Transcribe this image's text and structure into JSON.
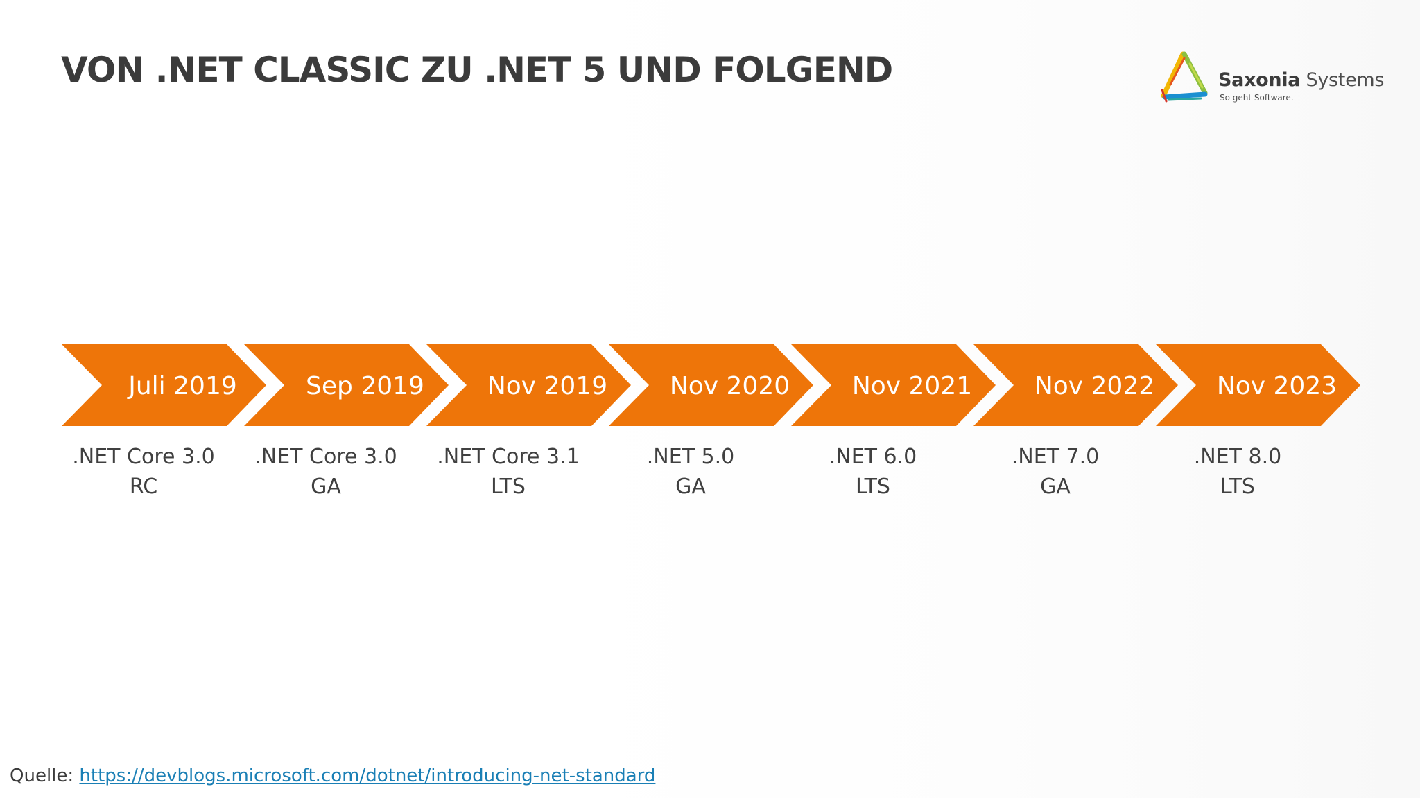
{
  "title": "VON .NET CLASSIC ZU .NET 5 UND FOLGEND",
  "logo": {
    "name_bold": "Saxonia",
    "name_rest": " Systems",
    "tagline": "So geht Software."
  },
  "timeline": [
    {
      "date": "Juli 2019",
      "product": ".NET Core 3.0",
      "status": "RC"
    },
    {
      "date": "Sep 2019",
      "product": ".NET Core 3.0",
      "status": "GA"
    },
    {
      "date": "Nov 2019",
      "product": ".NET Core 3.1",
      "status": "LTS"
    },
    {
      "date": "Nov 2020",
      "product": ".NET 5.0",
      "status": "GA"
    },
    {
      "date": "Nov 2021",
      "product": ".NET 6.0",
      "status": "LTS"
    },
    {
      "date": "Nov 2022",
      "product": ".NET 7.0",
      "status": "GA"
    },
    {
      "date": "Nov 2023",
      "product": ".NET 8.0",
      "status": "LTS"
    }
  ],
  "source": {
    "label": "Quelle:",
    "url": "https://devblogs.microsoft.com/dotnet/introducing-net-standard"
  },
  "colors": {
    "chevron": "#ee7509",
    "title": "#3b3b3b",
    "link": "#1a7fb5"
  }
}
